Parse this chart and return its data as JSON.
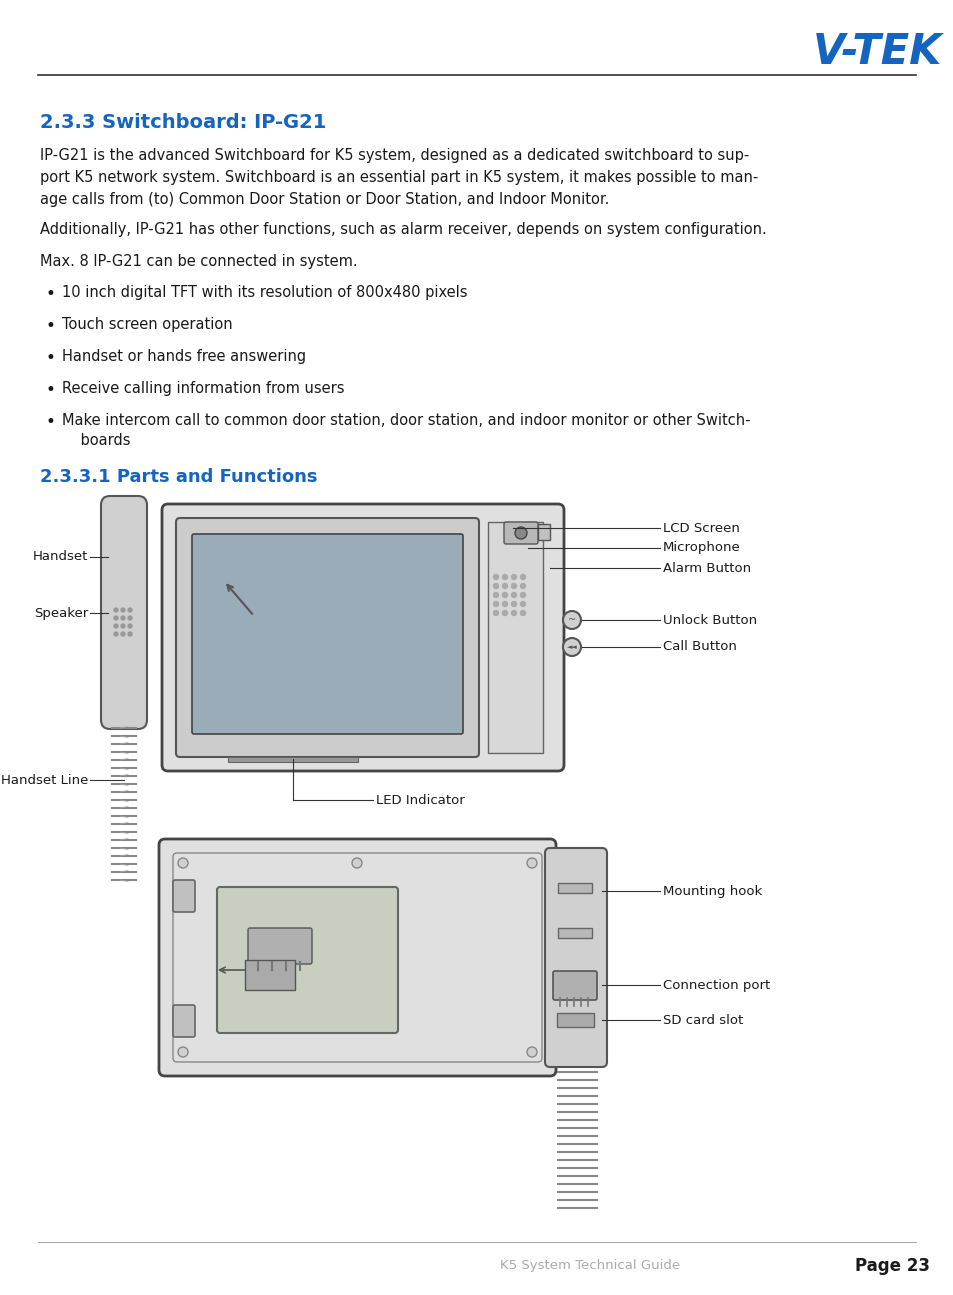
{
  "title": "2.3.3 Switchboard: IP-G21",
  "title_color": "#1565C0",
  "body_text1_lines": [
    "IP-G21 is the advanced Switchboard for K5 system, designed as a dedicated switchboard to sup-",
    "port K5 network system. Switchboard is an essential part in K5 system, it makes possible to man-",
    "age calls from (to) Common Door Station or Door Station, and Indoor Monitor."
  ],
  "body_text2": "Additionally, IP-G21 has other functions, such as alarm receiver, depends on system configuration.",
  "body_text3": "Max. 8 IP-G21 can be connected in system.",
  "bullets": [
    "10 inch digital TFT with its resolution of 800x480 pixels",
    "Touch screen operation",
    "Handset or hands free answering",
    "Receive calling information from users",
    "Make intercom call to common door station, door station, and indoor monitor or other Switch-"
  ],
  "bullet_last_cont": "    boards",
  "section2_title": "2.3.3.1 Parts and Functions",
  "section2_color": "#1565C0",
  "label_handset": "Handset",
  "label_speaker": "Speaker",
  "label_handset_line": "Handset Line",
  "label_lcd": "LCD Screen",
  "label_mic": "Microphone",
  "label_alarm": "Alarm Button",
  "label_unlock": "Unlock Button",
  "label_call": "Call Button",
  "label_led": "LED Indicator",
  "label_mount": "Mounting hook",
  "label_conn": "Connection port",
  "label_sd": "SD card slot",
  "footer_left": "K5 System Technical Guide",
  "footer_right": "Page 23",
  "bg_color": "#ffffff",
  "text_color": "#1a1a1a",
  "title_blue": "#1565C0",
  "line_color": "#333333",
  "footer_color": "#aaaaaa"
}
